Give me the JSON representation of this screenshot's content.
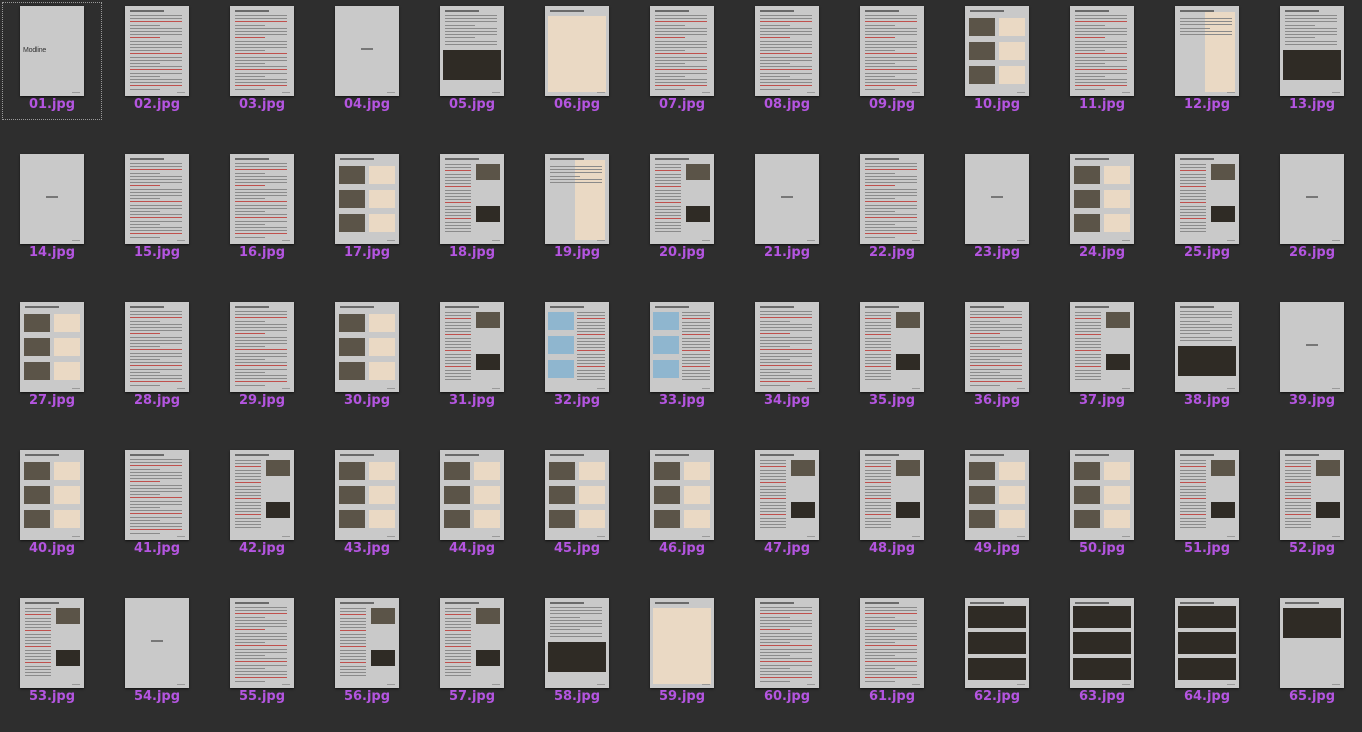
{
  "colors": {
    "background": "#2e2e2e",
    "label": "#b455e0",
    "page": "#c9c9c9"
  },
  "files": [
    {
      "name": "01.jpg",
      "kind": "cover",
      "text": "Modline",
      "selected": true
    },
    {
      "name": "02.jpg",
      "kind": "text"
    },
    {
      "name": "03.jpg",
      "kind": "text"
    },
    {
      "name": "04.jpg",
      "kind": "blank"
    },
    {
      "name": "05.jpg",
      "kind": "photo-bottom"
    },
    {
      "name": "06.jpg",
      "kind": "diagram"
    },
    {
      "name": "07.jpg",
      "kind": "text"
    },
    {
      "name": "08.jpg",
      "kind": "text"
    },
    {
      "name": "09.jpg",
      "kind": "text"
    },
    {
      "name": "10.jpg",
      "kind": "photos-grid"
    },
    {
      "name": "11.jpg",
      "kind": "text"
    },
    {
      "name": "12.jpg",
      "kind": "photo-full"
    },
    {
      "name": "13.jpg",
      "kind": "photo-bottom"
    },
    {
      "name": "14.jpg",
      "kind": "blank"
    },
    {
      "name": "15.jpg",
      "kind": "text"
    },
    {
      "name": "16.jpg",
      "kind": "text"
    },
    {
      "name": "17.jpg",
      "kind": "photos-grid"
    },
    {
      "name": "18.jpg",
      "kind": "photos-side"
    },
    {
      "name": "19.jpg",
      "kind": "photo-full"
    },
    {
      "name": "20.jpg",
      "kind": "photos-side"
    },
    {
      "name": "21.jpg",
      "kind": "blank"
    },
    {
      "name": "22.jpg",
      "kind": "text"
    },
    {
      "name": "23.jpg",
      "kind": "blank"
    },
    {
      "name": "24.jpg",
      "kind": "photos-grid"
    },
    {
      "name": "25.jpg",
      "kind": "photos-side"
    },
    {
      "name": "26.jpg",
      "kind": "blank"
    },
    {
      "name": "27.jpg",
      "kind": "photos-grid"
    },
    {
      "name": "28.jpg",
      "kind": "text"
    },
    {
      "name": "29.jpg",
      "kind": "text"
    },
    {
      "name": "30.jpg",
      "kind": "photos-grid"
    },
    {
      "name": "31.jpg",
      "kind": "photos-side"
    },
    {
      "name": "32.jpg",
      "kind": "blue"
    },
    {
      "name": "33.jpg",
      "kind": "blue"
    },
    {
      "name": "34.jpg",
      "kind": "text"
    },
    {
      "name": "35.jpg",
      "kind": "photos-side"
    },
    {
      "name": "36.jpg",
      "kind": "text"
    },
    {
      "name": "37.jpg",
      "kind": "photos-side"
    },
    {
      "name": "38.jpg",
      "kind": "photo-bottom"
    },
    {
      "name": "39.jpg",
      "kind": "blank"
    },
    {
      "name": "40.jpg",
      "kind": "photos-grid"
    },
    {
      "name": "41.jpg",
      "kind": "text"
    },
    {
      "name": "42.jpg",
      "kind": "photos-side"
    },
    {
      "name": "43.jpg",
      "kind": "photos-grid"
    },
    {
      "name": "44.jpg",
      "kind": "photos-grid"
    },
    {
      "name": "45.jpg",
      "kind": "photos-grid"
    },
    {
      "name": "46.jpg",
      "kind": "photos-grid"
    },
    {
      "name": "47.jpg",
      "kind": "photos-side"
    },
    {
      "name": "48.jpg",
      "kind": "photos-side"
    },
    {
      "name": "49.jpg",
      "kind": "photos-grid"
    },
    {
      "name": "50.jpg",
      "kind": "photos-grid"
    },
    {
      "name": "51.jpg",
      "kind": "photos-side"
    },
    {
      "name": "52.jpg",
      "kind": "photos-side"
    },
    {
      "name": "53.jpg",
      "kind": "photos-side"
    },
    {
      "name": "54.jpg",
      "kind": "blank"
    },
    {
      "name": "55.jpg",
      "kind": "text"
    },
    {
      "name": "56.jpg",
      "kind": "photos-side"
    },
    {
      "name": "57.jpg",
      "kind": "photos-side"
    },
    {
      "name": "58.jpg",
      "kind": "photo-bottom"
    },
    {
      "name": "59.jpg",
      "kind": "diagram"
    },
    {
      "name": "60.jpg",
      "kind": "text"
    },
    {
      "name": "61.jpg",
      "kind": "text"
    },
    {
      "name": "62.jpg",
      "kind": "photos-stack"
    },
    {
      "name": "63.jpg",
      "kind": "photos-stack"
    },
    {
      "name": "64.jpg",
      "kind": "photos-stack"
    },
    {
      "name": "65.jpg",
      "kind": "photo-top"
    }
  ]
}
